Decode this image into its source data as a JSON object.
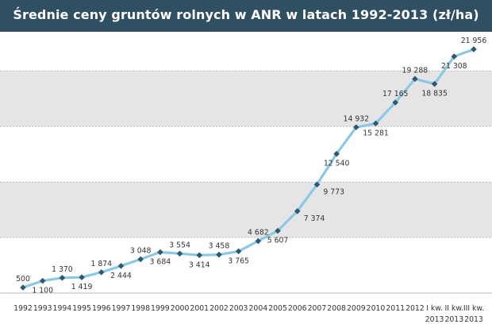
{
  "title": "Średnie ceny gruntów rolnych w ANR w latach 1992-2013 (zł/ha)",
  "colors": {
    "title_bg": "#2f4f63",
    "band": "#e5e5e5",
    "line": "#89c8e6",
    "marker": "#2c5a73",
    "grid": "#b9b9b9"
  },
  "chart_data": {
    "type": "line",
    "title": "Średnie ceny gruntów rolnych w ANR w latach 1992-2013 (zł/ha)",
    "xlabel": "",
    "ylabel": "",
    "ylim": [
      0,
      25000
    ],
    "grid": true,
    "categories": [
      {
        "line1": "1992",
        "line2": ""
      },
      {
        "line1": "1993",
        "line2": ""
      },
      {
        "line1": "1994",
        "line2": ""
      },
      {
        "line1": "1995",
        "line2": ""
      },
      {
        "line1": "1996",
        "line2": ""
      },
      {
        "line1": "1997",
        "line2": ""
      },
      {
        "line1": "1998",
        "line2": ""
      },
      {
        "line1": "1999",
        "line2": ""
      },
      {
        "line1": "2000",
        "line2": ""
      },
      {
        "line1": "2001",
        "line2": ""
      },
      {
        "line1": "2002",
        "line2": ""
      },
      {
        "line1": "2003",
        "line2": ""
      },
      {
        "line1": "2004",
        "line2": ""
      },
      {
        "line1": "2005",
        "line2": ""
      },
      {
        "line1": "2006",
        "line2": ""
      },
      {
        "line1": "2007",
        "line2": ""
      },
      {
        "line1": "2008",
        "line2": ""
      },
      {
        "line1": "2009",
        "line2": ""
      },
      {
        "line1": "2010",
        "line2": ""
      },
      {
        "line1": "2011",
        "line2": ""
      },
      {
        "line1": "2012",
        "line2": ""
      },
      {
        "line1": "I kw.",
        "line2": "2013"
      },
      {
        "line1": "II kw.",
        "line2": "2013"
      },
      {
        "line1": "III kw.",
        "line2": "2013"
      }
    ],
    "values": [
      500,
      1100,
      1370,
      1419,
      1874,
      2444,
      3048,
      3684,
      3554,
      3414,
      3458,
      3765,
      4682,
      5607,
      7374,
      9773,
      12540,
      14932,
      15281,
      17165,
      19288,
      18835,
      21308,
      21956
    ],
    "labels": [
      "500",
      "1 100",
      "1 370",
      "1 419",
      "1 874",
      "2 444",
      "3 048",
      "3 684",
      "3 554",
      "3 414",
      "3 458",
      "3 765",
      "4 682",
      "5 607",
      "7 374",
      "9 773",
      "12 540",
      "14 932",
      "15 281",
      "17 165",
      "19 288",
      "18 835",
      "21 308",
      "21 956"
    ],
    "label_placement": [
      "above",
      "below",
      "above",
      "below",
      "above",
      "below",
      "above",
      "below",
      "above",
      "below",
      "above",
      "below",
      "above",
      "below",
      "right",
      "right",
      "below",
      "above",
      "below",
      "above",
      "above",
      "below",
      "below",
      "above"
    ]
  }
}
